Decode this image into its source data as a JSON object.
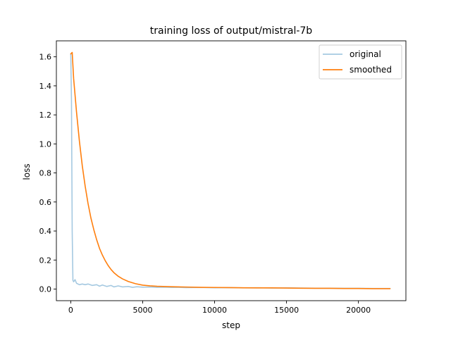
{
  "chart_data": {
    "type": "line",
    "title": "training loss of output/mistral-7b",
    "xlabel": "step",
    "ylabel": "loss",
    "xlim": [
      -1000,
      23300
    ],
    "ylim": [
      -0.08,
      1.71
    ],
    "xticks": [
      0,
      5000,
      10000,
      15000,
      20000
    ],
    "yticks": [
      0.0,
      0.2,
      0.4,
      0.6,
      0.8,
      1.0,
      1.2,
      1.4,
      1.6
    ],
    "xtick_labels": [
      "0",
      "5000",
      "10000",
      "15000",
      "20000"
    ],
    "ytick_labels": [
      "0.0",
      "0.2",
      "0.4",
      "0.6",
      "0.8",
      "1.0",
      "1.2",
      "1.4",
      "1.6"
    ],
    "grid": false,
    "legend_position": "upper right",
    "series": [
      {
        "name": "original",
        "color": "#1f77b4",
        "opacity": 0.4,
        "x": [
          0,
          50,
          100,
          150,
          200,
          300,
          400,
          600,
          800,
          1000,
          1200,
          1500,
          1800,
          2000,
          2200,
          2500,
          2800,
          3000,
          3300,
          3600,
          4000,
          4300,
          4600,
          5000,
          5500,
          6000,
          6500,
          7000,
          7500,
          8000,
          9000,
          10000,
          11000,
          12000,
          13000,
          14000,
          15000,
          16000,
          17000,
          18000,
          19000,
          20000,
          21000,
          22200
        ],
        "y": [
          1.62,
          1.3,
          0.4,
          0.06,
          0.05,
          0.065,
          0.04,
          0.03,
          0.035,
          0.03,
          0.035,
          0.025,
          0.03,
          0.02,
          0.028,
          0.018,
          0.025,
          0.015,
          0.022,
          0.015,
          0.018,
          0.012,
          0.016,
          0.013,
          0.014,
          0.012,
          0.013,
          0.011,
          0.012,
          0.01,
          0.011,
          0.009,
          0.01,
          0.008,
          0.009,
          0.007,
          0.008,
          0.007,
          0.006,
          0.006,
          0.005,
          0.005,
          0.004,
          0.004
        ]
      },
      {
        "name": "smoothed",
        "color": "#ff7f0e",
        "opacity": 1.0,
        "x": [
          0,
          100,
          200,
          400,
          600,
          800,
          1000,
          1200,
          1400,
          1600,
          1800,
          2000,
          2200,
          2400,
          2600,
          2800,
          3000,
          3300,
          3600,
          4000,
          4500,
          5000,
          5500,
          6000,
          7000,
          8000,
          9000,
          10000,
          11000,
          12000,
          13000,
          14000,
          15000,
          16000,
          17000,
          18000,
          19000,
          20000,
          21000,
          22200
        ],
        "y": [
          1.62,
          1.63,
          1.45,
          1.22,
          1.02,
          0.85,
          0.71,
          0.59,
          0.49,
          0.41,
          0.34,
          0.28,
          0.234,
          0.195,
          0.162,
          0.135,
          0.113,
          0.088,
          0.07,
          0.052,
          0.037,
          0.027,
          0.022,
          0.019,
          0.016,
          0.014,
          0.012,
          0.011,
          0.01,
          0.009,
          0.008,
          0.008,
          0.007,
          0.006,
          0.005,
          0.005,
          0.004,
          0.004,
          0.003,
          0.003
        ]
      }
    ]
  }
}
